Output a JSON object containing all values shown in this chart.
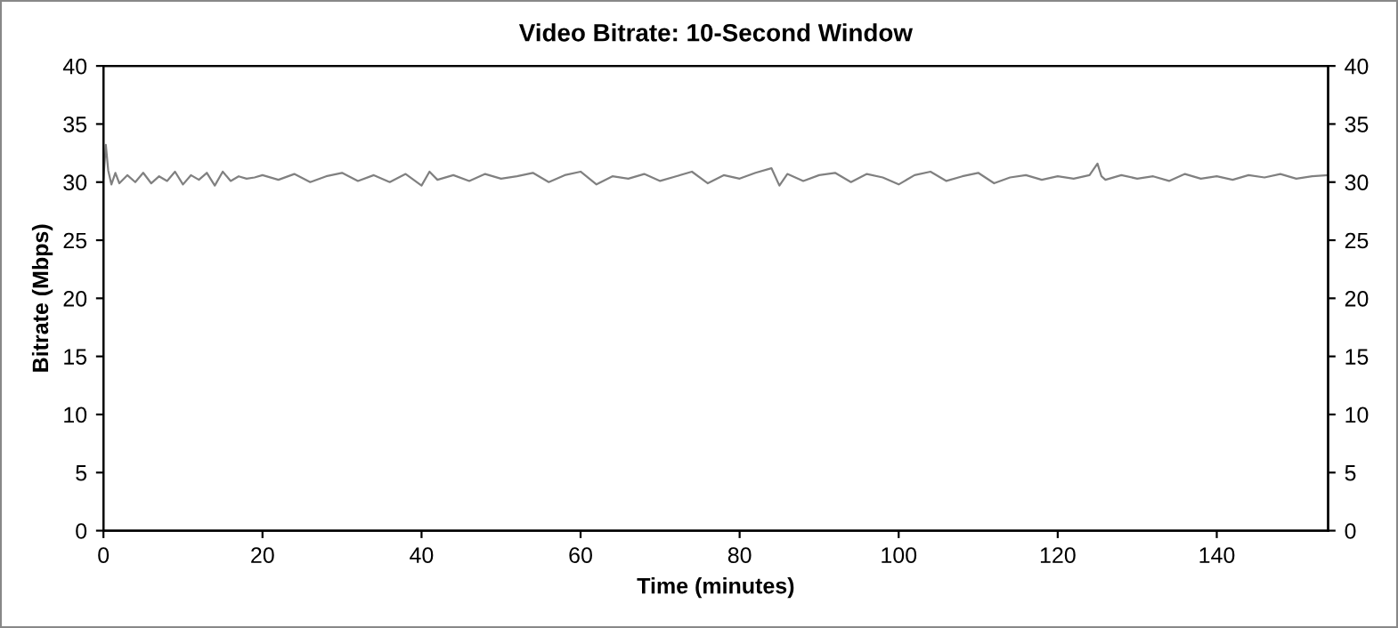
{
  "chart_data": {
    "type": "line",
    "title": "Video Bitrate: 10-Second Window",
    "xlabel": "Time (minutes)",
    "ylabel": "Bitrate (Mbps)",
    "xlim": [
      0,
      154
    ],
    "xticks": [
      0,
      20,
      40,
      60,
      80,
      100,
      120,
      140
    ],
    "ylim": [
      0,
      40
    ],
    "yticks": [
      0,
      5,
      10,
      15,
      20,
      25,
      30,
      35,
      40
    ],
    "y2lim": [
      0,
      40
    ],
    "y2ticks": [
      0,
      5,
      10,
      15,
      20,
      25,
      30,
      35,
      40
    ],
    "grid": false,
    "legend": false,
    "marker": "none",
    "line_style": "solid",
    "series": [
      {
        "color": "#808080",
        "x": [
          0,
          0.3,
          0.6,
          1,
          1.5,
          2,
          3,
          4,
          5,
          6,
          7,
          8,
          9,
          10,
          11,
          12,
          13,
          14,
          15,
          16,
          17,
          18,
          19,
          20,
          22,
          24,
          26,
          28,
          30,
          32,
          34,
          36,
          38,
          40,
          41,
          42,
          44,
          46,
          48,
          50,
          52,
          54,
          56,
          58,
          60,
          62,
          64,
          66,
          68,
          70,
          72,
          74,
          76,
          78,
          80,
          82,
          84,
          85,
          86,
          88,
          90,
          92,
          94,
          96,
          98,
          100,
          102,
          104,
          106,
          108,
          110,
          112,
          114,
          116,
          118,
          120,
          122,
          124,
          125,
          125.5,
          126,
          128,
          130,
          132,
          134,
          136,
          138,
          140,
          142,
          144,
          146,
          148,
          150,
          152,
          154
        ],
        "values": [
          30.3,
          33.2,
          31.0,
          29.8,
          30.8,
          29.9,
          30.6,
          30.0,
          30.8,
          29.9,
          30.5,
          30.1,
          30.9,
          29.8,
          30.6,
          30.2,
          30.8,
          29.7,
          30.9,
          30.1,
          30.5,
          30.3,
          30.4,
          30.6,
          30.2,
          30.7,
          30.0,
          30.5,
          30.8,
          30.1,
          30.6,
          30.0,
          30.7,
          29.7,
          30.9,
          30.2,
          30.6,
          30.1,
          30.7,
          30.3,
          30.5,
          30.8,
          30.0,
          30.6,
          30.9,
          29.8,
          30.5,
          30.3,
          30.7,
          30.1,
          30.5,
          30.9,
          29.9,
          30.6,
          30.3,
          30.8,
          31.2,
          29.7,
          30.7,
          30.1,
          30.6,
          30.8,
          30.0,
          30.7,
          30.4,
          29.8,
          30.6,
          30.9,
          30.1,
          30.5,
          30.8,
          29.9,
          30.4,
          30.6,
          30.2,
          30.5,
          30.3,
          30.6,
          31.6,
          30.5,
          30.2,
          30.6,
          30.3,
          30.5,
          30.1,
          30.7,
          30.3,
          30.5,
          30.2,
          30.6,
          30.4,
          30.7,
          30.3,
          30.5,
          30.6
        ]
      }
    ]
  }
}
